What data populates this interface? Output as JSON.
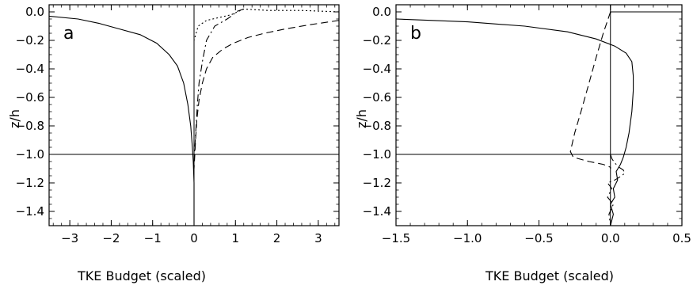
{
  "chart_data": [
    {
      "type": "line",
      "panel_label": "a",
      "xlabel": "TKE Budget (scaled)",
      "ylabel": "z/h",
      "xlim": [
        -3.5,
        3.5
      ],
      "ylim": [
        -1.5,
        0.05
      ],
      "xticks": [
        -3,
        -2,
        -1,
        0,
        1,
        2,
        3
      ],
      "yticks": [
        0.0,
        -0.2,
        -0.4,
        -0.6,
        -0.8,
        -1.0,
        -1.2,
        -1.4
      ],
      "xtick_labels": [
        "−3",
        "−2",
        "−1",
        "0",
        "1",
        "2",
        "3"
      ],
      "ytick_labels": [
        "0.0",
        "−0.2",
        "−0.4",
        "−0.6",
        "−0.8",
        "−1.0",
        "−1.2",
        "−1.4"
      ],
      "grid": false,
      "reference_lines": {
        "x": 0,
        "y": -1.0
      },
      "series": [
        {
          "style": "solid",
          "x": [
            -3.5,
            -2.8,
            -2.3,
            -1.8,
            -1.3,
            -0.9,
            -0.6,
            -0.4,
            -0.25,
            -0.15,
            -0.08,
            -0.04,
            -0.02,
            0.0,
            0.0
          ],
          "y": [
            -0.03,
            -0.05,
            -0.08,
            -0.12,
            -0.16,
            -0.22,
            -0.3,
            -0.38,
            -0.5,
            -0.65,
            -0.8,
            -0.95,
            -1.05,
            -1.2,
            -1.5
          ]
        },
        {
          "style": "dashed",
          "x": [
            3.5,
            2.8,
            2.2,
            1.7,
            1.3,
            0.95,
            0.7,
            0.45,
            0.3,
            0.2,
            0.12,
            0.07,
            0.04,
            0.02,
            0.0
          ],
          "y": [
            -0.06,
            -0.09,
            -0.12,
            -0.15,
            -0.18,
            -0.22,
            -0.26,
            -0.32,
            -0.4,
            -0.5,
            -0.62,
            -0.75,
            -0.88,
            -1.0,
            -1.1
          ]
        },
        {
          "style": "dash-dot",
          "x": [
            1.2,
            1.0,
            0.95,
            0.8,
            0.5,
            0.3,
            0.2,
            0.12,
            0.08,
            0.05,
            0.02,
            0.0
          ],
          "y": [
            0.02,
            0.0,
            -0.02,
            -0.05,
            -0.1,
            -0.2,
            -0.35,
            -0.5,
            -0.65,
            -0.8,
            -0.95,
            -1.05
          ]
        },
        {
          "style": "dotted",
          "x": [
            3.5,
            2.6,
            1.8,
            1.2,
            1.05,
            0.9,
            0.6,
            0.3,
            0.1,
            0.0
          ],
          "y": [
            0.0,
            0.01,
            0.01,
            0.02,
            0.0,
            -0.02,
            -0.04,
            -0.06,
            -0.1,
            -0.2
          ]
        }
      ]
    },
    {
      "type": "line",
      "panel_label": "b",
      "xlabel": "TKE Budget (scaled)",
      "ylabel": "z/h",
      "xlim": [
        -1.5,
        0.5
      ],
      "ylim": [
        -1.5,
        0.05
      ],
      "xticks": [
        -1.5,
        -1.0,
        -0.5,
        0.0,
        0.5
      ],
      "yticks": [
        0.0,
        -0.2,
        -0.4,
        -0.6,
        -0.8,
        -1.0,
        -1.2,
        -1.4
      ],
      "xtick_labels": [
        "−1.5",
        "−1.0",
        "−0.5",
        "0.0",
        "0.5"
      ],
      "ytick_labels": [
        "0.0",
        "−0.2",
        "−0.4",
        "−0.6",
        "−0.8",
        "−1.0",
        "−1.2",
        "−1.4"
      ],
      "grid": false,
      "reference_lines": {
        "x": 0,
        "y": -1.0
      },
      "series": [
        {
          "style": "solid",
          "x": [
            0.5,
            0.0,
            0.0
          ],
          "y": [
            0.0,
            0.0,
            -0.01
          ]
        },
        {
          "style": "solid",
          "x": [
            -1.5,
            -1.0,
            -0.6,
            -0.3,
            -0.1,
            0.03,
            0.11,
            0.15,
            0.16,
            0.16,
            0.15,
            0.13,
            0.11,
            0.09,
            0.07,
            0.04,
            0.05,
            0.02,
            0.03,
            0.0,
            0.02,
            0.0
          ],
          "y": [
            -0.05,
            -0.07,
            -0.1,
            -0.14,
            -0.19,
            -0.24,
            -0.29,
            -0.35,
            -0.45,
            -0.55,
            -0.7,
            -0.85,
            -0.95,
            -1.02,
            -1.07,
            -1.12,
            -1.18,
            -1.24,
            -1.3,
            -1.35,
            -1.42,
            -1.5
          ]
        },
        {
          "style": "dashed",
          "x": [
            0.0,
            -0.05,
            -0.1,
            -0.15,
            -0.2,
            -0.25,
            -0.28,
            -0.26,
            -0.15,
            -0.05,
            0.0,
            0.0
          ],
          "y": [
            0.0,
            -0.15,
            -0.32,
            -0.5,
            -0.68,
            -0.85,
            -0.98,
            -1.02,
            -1.05,
            -1.07,
            -1.09,
            -1.1
          ]
        },
        {
          "style": "dash-dot",
          "x": [
            0.0,
            0.01,
            0.03,
            0.06,
            0.09,
            0.1,
            0.08,
            0.03,
            -0.02,
            0.01,
            -0.02,
            0.02,
            -0.01,
            0.0
          ],
          "y": [
            -1.0,
            -1.03,
            -1.06,
            -1.09,
            -1.11,
            -1.13,
            -1.15,
            -1.18,
            -1.2,
            -1.24,
            -1.3,
            -1.35,
            -1.42,
            -1.5
          ]
        }
      ]
    }
  ]
}
